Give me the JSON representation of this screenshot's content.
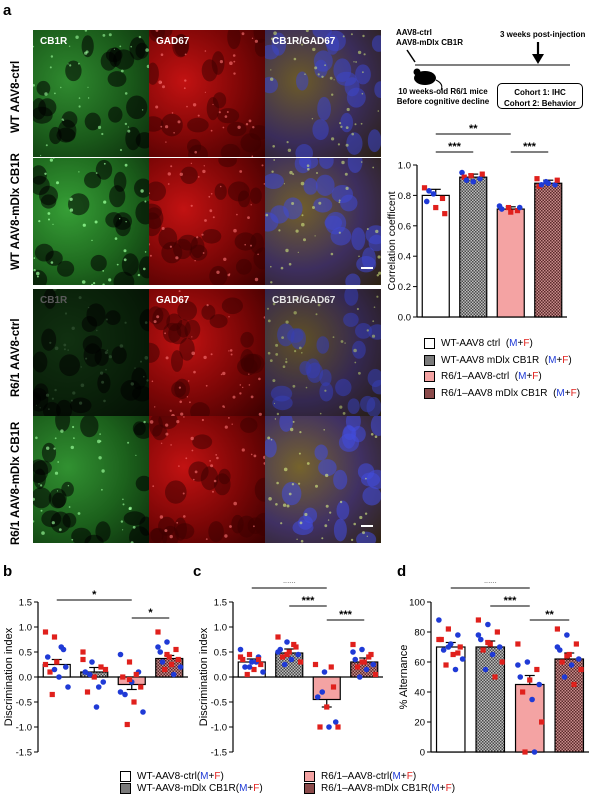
{
  "panel_labels": {
    "a": "a",
    "b": "b",
    "c": "c",
    "d": "d"
  },
  "micrographs": {
    "stain_labels": [
      "CB1R",
      "GAD67",
      "CB1R/GAD67"
    ],
    "row_labels": [
      "WT AAV8-ctrl",
      "WT AAV8-mDlx CB1R",
      "R6/1 AAV8-ctrl",
      "R6/1 AAV8-mDlx CB1R"
    ]
  },
  "schematic": {
    "injection": "AAV8-ctrl",
    "injection2": "AAV8-mDlx CB1R",
    "timepoint": "3 weeks post-injection",
    "mice_line1": "10 weeks-old R6/1 mice",
    "mice_line2": "Before cognitive decline",
    "cohort1": "Cohort 1: IHC",
    "cohort2": "Cohort 2: Behavior"
  },
  "legend_a": [
    {
      "label": "WT-AAV8 ctrl",
      "suffix_m": "M",
      "suffix_plus": "+",
      "suffix_f": "F",
      "fill": "#ffffff"
    },
    {
      "label": "WT-AAV8 mDlx CB1R",
      "suffix_m": "M",
      "suffix_plus": "+",
      "suffix_f": "F",
      "fill": "#7a7a7a"
    },
    {
      "label": "R6/1–AAV8-ctrl",
      "suffix_m": "M",
      "suffix_plus": "+",
      "suffix_f": "F",
      "fill": "#f4a3a3"
    },
    {
      "label": "R6/1–AAV8 mDlx CB1R",
      "suffix_m": "M",
      "suffix_plus": "+",
      "suffix_f": "F",
      "fill": "#8a4a4a"
    }
  ],
  "legend_bottom": [
    {
      "label": "WT-AAV8-ctrl",
      "suffix_open": " (",
      "suffix_m": "M",
      "suffix_plus": "+",
      "suffix_f": "F",
      "suffix_close": ")",
      "fill": "#ffffff"
    },
    {
      "label": "WT-AAV8-mDlx CB1R",
      "suffix_open": " (",
      "suffix_m": "M",
      "suffix_plus": "+",
      "suffix_f": "F",
      "suffix_close": ")",
      "fill": "#7a7a7a"
    },
    {
      "label": "R6/1–AAV8-ctrl",
      "suffix_open": " (",
      "suffix_m": "M",
      "suffix_plus": "+",
      "suffix_f": "F",
      "suffix_close": ")",
      "fill": "#f4a3a3"
    },
    {
      "label": "R6/1–AAV8-mDlx CB1R",
      "suffix_open": " (",
      "suffix_m": "M",
      "suffix_plus": "+",
      "suffix_f": "F",
      "suffix_close": ")",
      "fill": "#8a4a4a"
    }
  ],
  "colors": {
    "male": "#1f3ad6",
    "female": "#e0201c"
  },
  "chart_data": [
    {
      "id": "a",
      "type": "bar",
      "categories": [
        "WT-AAV8 ctrl",
        "WT-AAV8 mDlx CB1R",
        "R6/1–AAV8-ctrl",
        "R6/1–AAV8 mDlx CB1R"
      ],
      "values": [
        0.8,
        0.92,
        0.71,
        0.88
      ],
      "errors": [
        0.04,
        0.02,
        0.015,
        0.02
      ],
      "ylabel": "Correlation coefficent",
      "ylim": [
        0.0,
        1.0
      ],
      "yticks": [
        "0.0",
        "0.2",
        "0.4",
        "0.6",
        "0.8",
        "1.0"
      ],
      "significance": [
        {
          "from": 0,
          "to": 2,
          "label": "**"
        },
        {
          "from": 0,
          "to": 1,
          "label": "***"
        },
        {
          "from": 2,
          "to": 3,
          "label": "***"
        }
      ],
      "points": [
        [
          0.85,
          0.81,
          0.78,
          0.76,
          0.72,
          0.68,
          0.83
        ],
        [
          0.95,
          0.93,
          0.91,
          0.92,
          0.89,
          0.94,
          0.9
        ],
        [
          0.73,
          0.72,
          0.7,
          0.71,
          0.69,
          0.72
        ],
        [
          0.91,
          0.89,
          0.87,
          0.86,
          0.88,
          0.9,
          0.87
        ]
      ],
      "point_sex": [
        [
          "F",
          "M",
          "F",
          "M",
          "F",
          "F",
          "M"
        ],
        [
          "M",
          "F",
          "M",
          "F",
          "M",
          "F",
          "M"
        ],
        [
          "M",
          "F",
          "F",
          "M",
          "F",
          "M"
        ],
        [
          "F",
          "M",
          "M",
          "F",
          "M",
          "F",
          "M"
        ]
      ]
    },
    {
      "id": "b",
      "type": "bar",
      "categories": [
        "WT-AAV8-ctrl",
        "WT-AAV8-mDlx CB1R",
        "R6/1–AAV8-ctrl",
        "R6/1–AAV8-mDlx CB1R"
      ],
      "values": [
        0.25,
        0.1,
        -0.15,
        0.37
      ],
      "errors": [
        0.1,
        0.09,
        0.1,
        0.06
      ],
      "ylabel": "Discrimination index",
      "ylim": [
        -1.5,
        1.5
      ],
      "yticks": [
        "-1.5",
        "-1.0",
        "-0.5",
        "0.0",
        "0.5",
        "1.0",
        "1.5"
      ],
      "significance": [
        {
          "from": 0,
          "to": 2,
          "label": "*"
        },
        {
          "from": 2,
          "to": 3,
          "label": "*"
        }
      ],
      "points": [
        [
          0.9,
          0.8,
          0.55,
          0.4,
          0.3,
          0.2,
          0.1,
          0.0,
          -0.2,
          -0.35,
          0.6,
          0.25,
          0.15
        ],
        [
          0.5,
          0.3,
          0.2,
          0.1,
          0.0,
          -0.1,
          -0.3,
          -0.6,
          0.15,
          0.05,
          -0.2,
          0.35
        ],
        [
          0.45,
          0.3,
          0.1,
          0.0,
          -0.1,
          -0.2,
          -0.35,
          -0.5,
          -0.7,
          -0.95,
          0.05,
          -0.3,
          -0.05
        ],
        [
          0.9,
          0.7,
          0.55,
          0.5,
          0.4,
          0.35,
          0.3,
          0.25,
          0.2,
          0.15,
          0.05,
          0.6,
          0.45
        ]
      ],
      "point_sex": [
        [
          "F",
          "F",
          "M",
          "M",
          "F",
          "M",
          "F",
          "M",
          "M",
          "F",
          "M",
          "F",
          "M"
        ],
        [
          "F",
          "M",
          "F",
          "M",
          "F",
          "M",
          "F",
          "M",
          "F",
          "M",
          "M",
          "F"
        ],
        [
          "M",
          "F",
          "M",
          "F",
          "M",
          "F",
          "M",
          "F",
          "M",
          "F",
          "F",
          "M",
          "F"
        ],
        [
          "F",
          "M",
          "F",
          "M",
          "F",
          "F",
          "M",
          "F",
          "M",
          "F",
          "M",
          "M",
          "F"
        ]
      ]
    },
    {
      "id": "c",
      "type": "bar",
      "categories": [
        "WT-AAV8-ctrl",
        "WT-AAV8-mDlx CB1R",
        "R6/1–AAV8-ctrl",
        "R6/1–AAV8-mDlx CB1R"
      ],
      "values": [
        0.3,
        0.48,
        -0.45,
        0.3
      ],
      "errors": [
        0.06,
        0.08,
        0.15,
        0.08
      ],
      "ylabel": "Discrimination index",
      "ylim": [
        -1.5,
        1.5
      ],
      "yticks": [
        "-1.5",
        "-1.0",
        "-0.5",
        "0.0",
        "0.5",
        "1.0",
        "1.5"
      ],
      "significance": [
        {
          "from": 0,
          "to": 2,
          "label": "***"
        },
        {
          "from": 1,
          "to": 2,
          "label": "***"
        },
        {
          "from": 2,
          "to": 3,
          "label": "***"
        }
      ],
      "points": [
        [
          0.55,
          0.45,
          0.4,
          0.35,
          0.3,
          0.25,
          0.2,
          0.15,
          0.1,
          0.05,
          0.3,
          0.4,
          0.2,
          0.35
        ],
        [
          0.8,
          0.7,
          0.6,
          0.55,
          0.5,
          0.45,
          0.4,
          0.35,
          0.3,
          0.25,
          0.65,
          0.5,
          0.45
        ],
        [
          0.25,
          0.1,
          -0.2,
          -0.4,
          -0.6,
          -0.9,
          -1.0,
          -1.0,
          -1.0,
          -0.3,
          0.2
        ],
        [
          0.65,
          0.55,
          0.45,
          0.35,
          0.3,
          0.25,
          0.2,
          0.15,
          0.05,
          0.0,
          0.4,
          0.5,
          0.3
        ]
      ],
      "point_sex": [
        [
          "M",
          "F",
          "M",
          "F",
          "M",
          "F",
          "M",
          "F",
          "M",
          "F",
          "M",
          "F",
          "M",
          "F"
        ],
        [
          "F",
          "M",
          "F",
          "M",
          "F",
          "M",
          "F",
          "M",
          "F",
          "M",
          "F",
          "M",
          "F"
        ],
        [
          "F",
          "M",
          "F",
          "M",
          "F",
          "M",
          "F",
          "M",
          "F",
          "M",
          "F"
        ],
        [
          "F",
          "M",
          "F",
          "M",
          "F",
          "M",
          "F",
          "M",
          "F",
          "M",
          "F",
          "M",
          "F"
        ]
      ]
    },
    {
      "id": "d",
      "type": "bar",
      "categories": [
        "WT-AAV8-ctrl",
        "WT-AAV8-mDlx CB1R",
        "R6/1–AAV8-ctrl",
        "R6/1–AAV8-mDlx CB1R"
      ],
      "values": [
        70,
        70,
        45,
        62
      ],
      "errors": [
        3,
        4,
        6,
        4
      ],
      "ylabel": "% Alternance",
      "ylim": [
        0,
        100
      ],
      "yticks": [
        "0",
        "20",
        "40",
        "60",
        "80",
        "100"
      ],
      "significance": [
        {
          "from": 0,
          "to": 2,
          "label": "***"
        },
        {
          "from": 1,
          "to": 2,
          "label": "***"
        },
        {
          "from": 2,
          "to": 3,
          "label": "**"
        }
      ],
      "points": [
        [
          88,
          82,
          78,
          75,
          72,
          70,
          68,
          65,
          62,
          58,
          55,
          75,
          70,
          66
        ],
        [
          88,
          85,
          80,
          75,
          72,
          70,
          68,
          65,
          60,
          55,
          50,
          78,
          73
        ],
        [
          72,
          60,
          55,
          50,
          48,
          45,
          40,
          35,
          20,
          0,
          0,
          58
        ],
        [
          82,
          78,
          72,
          68,
          65,
          62,
          60,
          58,
          55,
          50,
          45,
          70,
          64
        ]
      ],
      "point_sex": [
        [
          "M",
          "F",
          "M",
          "F",
          "M",
          "F",
          "M",
          "F",
          "M",
          "F",
          "M",
          "F",
          "M",
          "F"
        ],
        [
          "F",
          "M",
          "F",
          "M",
          "F",
          "M",
          "F",
          "M",
          "F",
          "M",
          "F",
          "M",
          "F"
        ],
        [
          "F",
          "M",
          "F",
          "M",
          "F",
          "M",
          "F",
          "M",
          "F",
          "F",
          "M",
          "M"
        ],
        [
          "F",
          "M",
          "F",
          "M",
          "F",
          "M",
          "F",
          "M",
          "F",
          "M",
          "F",
          "M",
          "F"
        ]
      ]
    }
  ]
}
